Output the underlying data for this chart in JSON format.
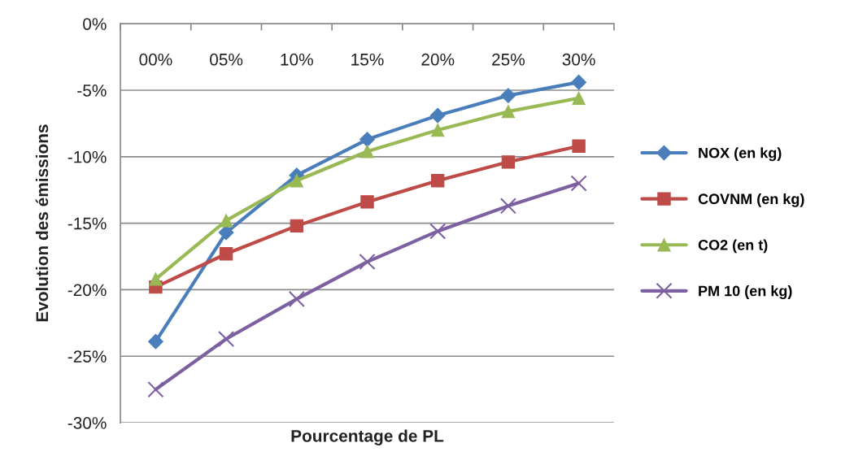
{
  "chart_data": {
    "type": "line",
    "xlabel": "Pourcentage de PL",
    "ylabel": "Evolution des émissions",
    "categories": [
      "00%",
      "05%",
      "10%",
      "15%",
      "20%",
      "25%",
      "30%"
    ],
    "series": [
      {
        "name": "NOX (en kg)",
        "color": "#4a7ebb",
        "marker": "diamond",
        "values": [
          -23.9,
          -15.7,
          -11.4,
          -8.7,
          -6.9,
          -5.4,
          -4.4
        ]
      },
      {
        "name": "COVNM (en kg)",
        "color": "#be4b48",
        "marker": "square",
        "values": [
          -19.8,
          -17.3,
          -15.2,
          -13.4,
          -11.8,
          -10.4,
          -9.2
        ]
      },
      {
        "name": "CO2 (en t)",
        "color": "#98b954",
        "marker": "triangle",
        "values": [
          -19.2,
          -14.8,
          -11.8,
          -9.6,
          -8.0,
          -6.6,
          -5.6
        ]
      },
      {
        "name": "PM 10 (en kg)",
        "color": "#7d60a0",
        "marker": "cross",
        "values": [
          -27.5,
          -23.7,
          -20.7,
          -17.9,
          -15.6,
          -13.7,
          -12.0
        ]
      }
    ],
    "ylim": [
      -30,
      0
    ],
    "yticks": [
      {
        "value": 0,
        "label": "0%"
      },
      {
        "value": -5,
        "label": "-5%"
      },
      {
        "value": -10,
        "label": "-10%"
      },
      {
        "value": -15,
        "label": "-15%"
      },
      {
        "value": -20,
        "label": "-20%"
      },
      {
        "value": -25,
        "label": "-25%"
      },
      {
        "value": -30,
        "label": "-30%"
      }
    ],
    "grid": "y",
    "legend": "right",
    "line_style": "solid"
  }
}
